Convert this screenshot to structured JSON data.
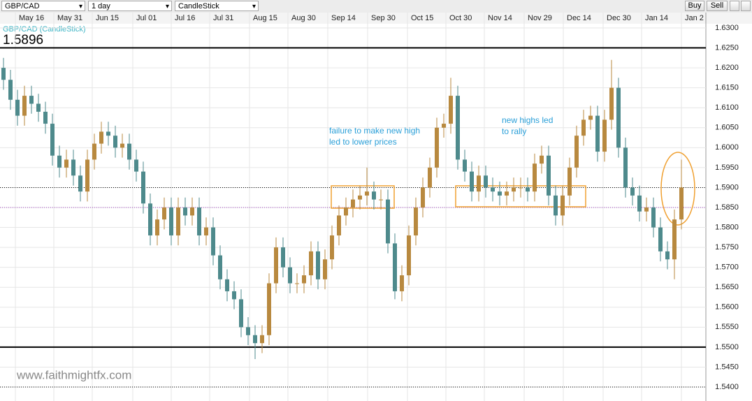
{
  "toolbar": {
    "symbol": "GBP/CAD",
    "interval": "1 day",
    "style": "CandleStick",
    "buy": "Buy",
    "sell": "Sell"
  },
  "watermark": "www.faithmightfx.com",
  "chart_data": {
    "type": "candlestick",
    "title": "GBP/CAD (CandleStick)",
    "last_price": "1.5896",
    "up_color": "#b8893f",
    "down_color": "#4e8a8c",
    "grid": true,
    "xlim": [
      -0.5,
      100.5
    ],
    "xticks": [
      {
        "value": 1.7,
        "label": "May 16"
      },
      {
        "value": 7.2,
        "label": "May 31"
      },
      {
        "value": 12.7,
        "label": "Jun 15"
      },
      {
        "value": 18.5,
        "label": "Jul 01"
      },
      {
        "value": 24,
        "label": "Jul 16"
      },
      {
        "value": 29.5,
        "label": "Jul 31"
      },
      {
        "value": 35.2,
        "label": "Aug 15"
      },
      {
        "value": 40.7,
        "label": "Aug 30"
      },
      {
        "value": 46.4,
        "label": "Sep 14"
      },
      {
        "value": 52.1,
        "label": "Sep 30"
      },
      {
        "value": 57.8,
        "label": "Oct 15"
      },
      {
        "value": 63.3,
        "label": "Oct 30"
      },
      {
        "value": 68.8,
        "label": "Nov 14"
      },
      {
        "value": 74.5,
        "label": "Nov 29"
      },
      {
        "value": 80.1,
        "label": "Dec 14"
      },
      {
        "value": 85.8,
        "label": "Dec 30"
      },
      {
        "value": 91.3,
        "label": "Jan 14"
      },
      {
        "value": 97,
        "label": "Jan 2"
      }
    ],
    "ylim": [
      1.54,
      1.63
    ],
    "yticks": [
      {
        "value": 1.63,
        "label": "1.6300"
      },
      {
        "value": 1.625,
        "label": "1.6250"
      },
      {
        "value": 1.62,
        "label": "1.6200"
      },
      {
        "value": 1.615,
        "label": "1.6150"
      },
      {
        "value": 1.61,
        "label": "1.6100"
      },
      {
        "value": 1.605,
        "label": "1.6050"
      },
      {
        "value": 1.6,
        "label": "1.6000"
      },
      {
        "value": 1.595,
        "label": "1.5950"
      },
      {
        "value": 1.59,
        "label": "1.5900"
      },
      {
        "value": 1.585,
        "label": "1.5850"
      },
      {
        "value": 1.58,
        "label": "1.5800"
      },
      {
        "value": 1.575,
        "label": "1.5750"
      },
      {
        "value": 1.57,
        "label": "1.5700"
      },
      {
        "value": 1.565,
        "label": "1.5650"
      },
      {
        "value": 1.56,
        "label": "1.5600"
      },
      {
        "value": 1.555,
        "label": "1.5550"
      },
      {
        "value": 1.55,
        "label": "1.5500"
      },
      {
        "value": 1.545,
        "label": "1.5450"
      },
      {
        "value": 1.54,
        "label": "1.5400"
      }
    ],
    "levels": [
      {
        "value": 1.625,
        "style": "solid",
        "color": "#000000"
      },
      {
        "value": 1.55,
        "style": "solid",
        "color": "#000000"
      },
      {
        "value": 1.59,
        "style": "dotted",
        "color": "#000000"
      },
      {
        "value": 1.585,
        "style": "dotted",
        "color": "#a040c0"
      },
      {
        "value": 1.54,
        "style": "dotted",
        "color": "#000000"
      }
    ],
    "annotations": [
      {
        "lines": [
          "failure to make new high",
          "led to lower prices"
        ]
      },
      {
        "lines": [
          "new highs led",
          "to rally"
        ]
      }
    ],
    "open": [
      1.62,
      1.617,
      1.612,
      1.608,
      1.613,
      1.611,
      1.609,
      1.606,
      1.598,
      1.595,
      1.597,
      1.593,
      1.589,
      1.597,
      1.601,
      1.604,
      1.603,
      1.6,
      1.601,
      1.597,
      1.594,
      1.586,
      1.578,
      1.582,
      1.585,
      1.578,
      1.585,
      1.583,
      1.585,
      1.578,
      1.58,
      1.573,
      1.567,
      1.564,
      1.562,
      1.555,
      1.553,
      1.551,
      1.553,
      1.566,
      1.575,
      1.57,
      1.566,
      1.566,
      1.568,
      1.574,
      1.567,
      1.572,
      1.578,
      1.583,
      1.585,
      1.587,
      1.588,
      1.589,
      1.587,
      1.587,
      1.576,
      1.564,
      1.568,
      1.578,
      1.585,
      1.59,
      1.595,
      1.605,
      1.606,
      1.613,
      1.597,
      1.594,
      1.589,
      1.593,
      1.59,
      1.589,
      1.588,
      1.589,
      1.59,
      1.59,
      1.589,
      1.596,
      1.598,
      1.588,
      1.583,
      1.588,
      1.595,
      1.603,
      1.607,
      1.608,
      1.599,
      1.607,
      1.615,
      1.6,
      1.59,
      1.588,
      1.584,
      1.585,
      1.58,
      1.574,
      1.572,
      1.582
    ],
    "high": [
      1.6225,
      1.6195,
      1.6145,
      1.6155,
      1.6155,
      1.6135,
      1.6115,
      1.6085,
      1.6005,
      1.5995,
      1.5995,
      1.5955,
      1.5995,
      1.6035,
      1.6065,
      1.6065,
      1.6055,
      1.6035,
      1.6035,
      1.5995,
      1.5965,
      1.5885,
      1.5845,
      1.5875,
      1.5875,
      1.5875,
      1.5875,
      1.5875,
      1.5875,
      1.5825,
      1.5825,
      1.5755,
      1.5695,
      1.5665,
      1.5645,
      1.5575,
      1.5555,
      1.5555,
      1.5685,
      1.5775,
      1.5775,
      1.5725,
      1.5685,
      1.5705,
      1.5765,
      1.5765,
      1.5745,
      1.5805,
      1.5855,
      1.5875,
      1.5895,
      1.5905,
      1.595,
      1.5915,
      1.5895,
      1.5895,
      1.5785,
      1.5705,
      1.5805,
      1.5875,
      1.5925,
      1.5975,
      1.6075,
      1.6085,
      1.6175,
      1.6155,
      1.5995,
      1.5965,
      1.5955,
      1.5955,
      1.5925,
      1.5915,
      1.5915,
      1.5925,
      1.5925,
      1.5925,
      1.5985,
      1.6005,
      1.6005,
      1.5905,
      1.5905,
      1.5975,
      1.6055,
      1.6095,
      1.6105,
      1.6105,
      1.6095,
      1.622,
      1.6175,
      1.6025,
      1.5925,
      1.5905,
      1.5875,
      1.5875,
      1.5825,
      1.5765,
      1.5845,
      1.597
    ],
    "low": [
      1.6145,
      1.6095,
      1.6055,
      1.6055,
      1.6085,
      1.6065,
      1.6035,
      1.5955,
      1.5925,
      1.5925,
      1.5905,
      1.5865,
      1.5865,
      1.5945,
      1.5985,
      1.6005,
      1.5975,
      1.5975,
      1.5945,
      1.5915,
      1.5835,
      1.5755,
      1.5755,
      1.5795,
      1.5755,
      1.5755,
      1.5805,
      1.5805,
      1.5755,
      1.5755,
      1.5705,
      1.5645,
      1.5615,
      1.5595,
      1.5525,
      1.5505,
      1.547,
      1.5485,
      1.5505,
      1.5635,
      1.5675,
      1.5635,
      1.5635,
      1.5635,
      1.5655,
      1.5645,
      1.5645,
      1.5695,
      1.5755,
      1.5805,
      1.5825,
      1.5845,
      1.5855,
      1.5845,
      1.5845,
      1.5735,
      1.562,
      1.5615,
      1.5655,
      1.5755,
      1.5825,
      1.5875,
      1.5925,
      1.6025,
      1.6035,
      1.5945,
      1.5915,
      1.5865,
      1.5865,
      1.5875,
      1.5865,
      1.5855,
      1.5855,
      1.5865,
      1.5875,
      1.5865,
      1.5865,
      1.5935,
      1.5855,
      1.5805,
      1.5805,
      1.5855,
      1.5925,
      1.6005,
      1.6045,
      1.5965,
      1.5965,
      1.6045,
      1.5975,
      1.5875,
      1.5855,
      1.5815,
      1.5815,
      1.5775,
      1.5715,
      1.5695,
      1.567,
      1.5795
    ],
    "close": [
      1.617,
      1.612,
      1.608,
      1.613,
      1.611,
      1.609,
      1.606,
      1.598,
      1.595,
      1.597,
      1.593,
      1.589,
      1.597,
      1.601,
      1.604,
      1.603,
      1.6,
      1.601,
      1.597,
      1.594,
      1.586,
      1.578,
      1.582,
      1.585,
      1.578,
      1.585,
      1.583,
      1.585,
      1.578,
      1.58,
      1.573,
      1.567,
      1.564,
      1.562,
      1.555,
      1.553,
      1.551,
      1.553,
      1.566,
      1.575,
      1.57,
      1.566,
      1.566,
      1.568,
      1.574,
      1.567,
      1.572,
      1.578,
      1.583,
      1.585,
      1.587,
      1.588,
      1.589,
      1.587,
      1.587,
      1.576,
      1.564,
      1.568,
      1.578,
      1.585,
      1.59,
      1.595,
      1.605,
      1.606,
      1.613,
      1.597,
      1.594,
      1.589,
      1.593,
      1.59,
      1.589,
      1.588,
      1.589,
      1.59,
      1.59,
      1.589,
      1.596,
      1.598,
      1.588,
      1.583,
      1.588,
      1.595,
      1.603,
      1.607,
      1.608,
      1.599,
      1.607,
      1.615,
      1.6,
      1.59,
      1.588,
      1.584,
      1.585,
      1.58,
      1.574,
      1.572,
      1.582,
      1.59
    ]
  }
}
